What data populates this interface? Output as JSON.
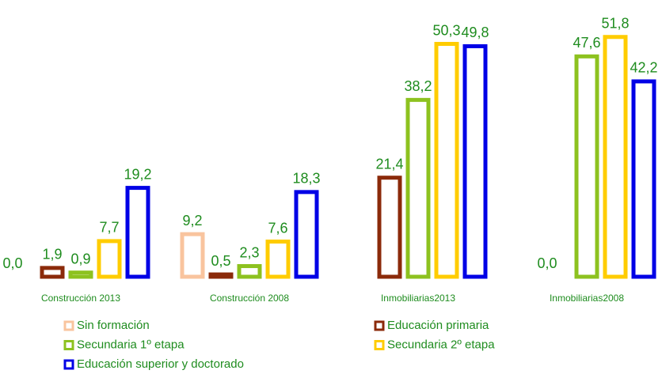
{
  "chart_data": {
    "type": "bar",
    "categories": [
      "Construcción 2013",
      "Construcción 2008",
      "Inmobiliarias2013",
      "Inmobiliarias2008"
    ],
    "series": [
      {
        "name": "Sin formación",
        "color": "#f9c49e",
        "values": [
          0.0,
          9.2,
          null,
          null
        ],
        "value_labels": [
          "0,0",
          "9,2",
          null,
          null
        ]
      },
      {
        "name": "Educación primaria",
        "color": "#8b2a0a",
        "values": [
          1.9,
          0.5,
          21.4,
          0.0
        ],
        "value_labels": [
          "1,9",
          "0,5",
          "21,4",
          "0,0"
        ]
      },
      {
        "name": "Secundaria 1º etapa",
        "color": "#8dc21f",
        "values": [
          0.9,
          2.3,
          38.2,
          47.6
        ],
        "value_labels": [
          "0,9",
          "2,3",
          "38,2",
          "47,6"
        ]
      },
      {
        "name": "Secundaria 2º etapa",
        "color": "#ffcc00",
        "values": [
          7.7,
          7.6,
          50.3,
          51.8
        ],
        "value_labels": [
          "7,7",
          "7,6",
          "50,3",
          "51,8"
        ]
      },
      {
        "name": "Educación superior y doctorado",
        "color": "#0000e6",
        "values": [
          19.2,
          18.3,
          49.8,
          42.2
        ],
        "value_labels": [
          "19,2",
          "18,3",
          "49,8",
          "42,2"
        ]
      }
    ],
    "ylim": [
      0,
      55
    ]
  }
}
